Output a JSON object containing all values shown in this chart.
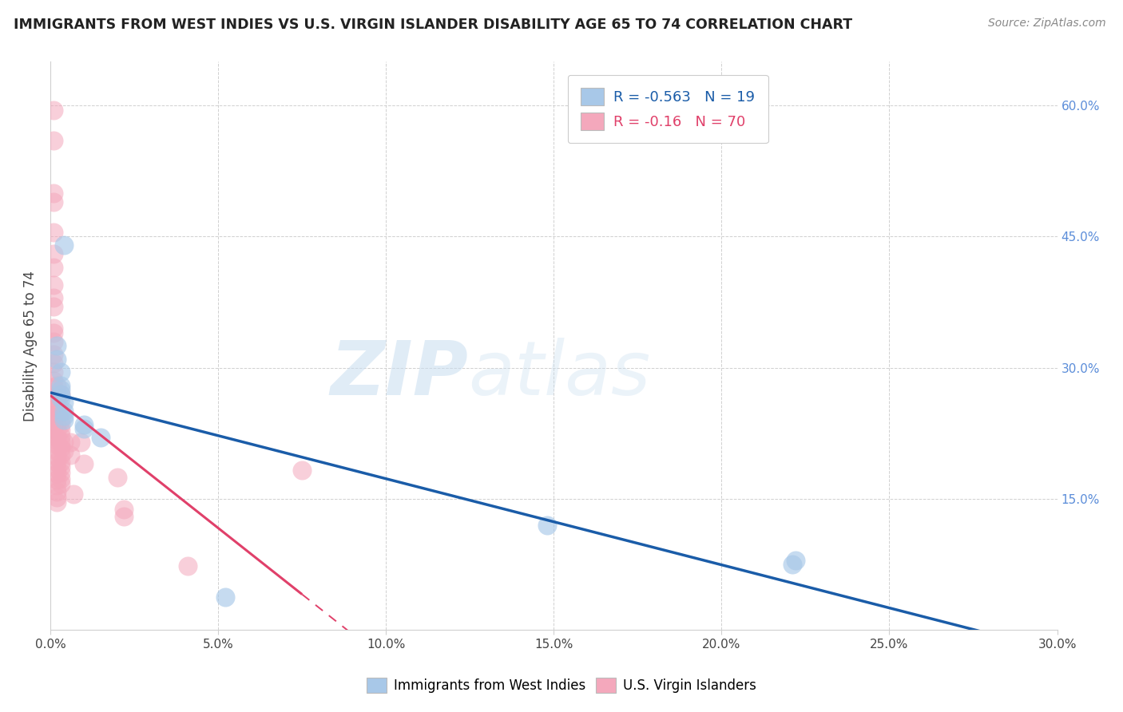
{
  "title": "IMMIGRANTS FROM WEST INDIES VS U.S. VIRGIN ISLANDER DISABILITY AGE 65 TO 74 CORRELATION CHART",
  "source": "Source: ZipAtlas.com",
  "ylabel": "Disability Age 65 to 74",
  "xmin": 0.0,
  "xmax": 0.3,
  "ymin": 0.0,
  "ymax": 0.65,
  "xticks": [
    0.0,
    0.05,
    0.1,
    0.15,
    0.2,
    0.25,
    0.3
  ],
  "yticks": [
    0.0,
    0.15,
    0.3,
    0.45,
    0.6
  ],
  "R_blue": -0.563,
  "N_blue": 19,
  "R_pink": -0.16,
  "N_pink": 70,
  "legend_label_blue": "Immigrants from West Indies",
  "legend_label_pink": "U.S. Virgin Islanders",
  "color_blue": "#a8c8e8",
  "color_pink": "#f4a8bc",
  "line_color_blue": "#1a5ca8",
  "line_color_pink": "#e0406a",
  "watermark_zip": "ZIP",
  "watermark_atlas": "atlas",
  "blue_points": [
    [
      0.004,
      0.44
    ],
    [
      0.002,
      0.325
    ],
    [
      0.002,
      0.31
    ],
    [
      0.003,
      0.295
    ],
    [
      0.003,
      0.28
    ],
    [
      0.003,
      0.275
    ],
    [
      0.003,
      0.27
    ],
    [
      0.003,
      0.265
    ],
    [
      0.004,
      0.26
    ],
    [
      0.004,
      0.25
    ],
    [
      0.004,
      0.245
    ],
    [
      0.004,
      0.24
    ],
    [
      0.01,
      0.235
    ],
    [
      0.01,
      0.23
    ],
    [
      0.015,
      0.22
    ],
    [
      0.148,
      0.12
    ],
    [
      0.221,
      0.075
    ],
    [
      0.222,
      0.08
    ],
    [
      0.052,
      0.038
    ]
  ],
  "pink_points": [
    [
      0.001,
      0.595
    ],
    [
      0.001,
      0.56
    ],
    [
      0.001,
      0.5
    ],
    [
      0.001,
      0.49
    ],
    [
      0.001,
      0.455
    ],
    [
      0.001,
      0.43
    ],
    [
      0.001,
      0.415
    ],
    [
      0.001,
      0.395
    ],
    [
      0.001,
      0.38
    ],
    [
      0.001,
      0.37
    ],
    [
      0.001,
      0.345
    ],
    [
      0.001,
      0.34
    ],
    [
      0.001,
      0.33
    ],
    [
      0.001,
      0.315
    ],
    [
      0.001,
      0.305
    ],
    [
      0.001,
      0.295
    ],
    [
      0.001,
      0.285
    ],
    [
      0.001,
      0.278
    ],
    [
      0.001,
      0.265
    ],
    [
      0.001,
      0.258
    ],
    [
      0.001,
      0.252
    ],
    [
      0.001,
      0.245
    ],
    [
      0.001,
      0.238
    ],
    [
      0.001,
      0.232
    ],
    [
      0.001,
      0.225
    ],
    [
      0.001,
      0.218
    ],
    [
      0.002,
      0.28
    ],
    [
      0.002,
      0.268
    ],
    [
      0.002,
      0.258
    ],
    [
      0.002,
      0.248
    ],
    [
      0.002,
      0.238
    ],
    [
      0.002,
      0.228
    ],
    [
      0.002,
      0.22
    ],
    [
      0.002,
      0.212
    ],
    [
      0.002,
      0.205
    ],
    [
      0.002,
      0.198
    ],
    [
      0.002,
      0.192
    ],
    [
      0.002,
      0.185
    ],
    [
      0.002,
      0.179
    ],
    [
      0.002,
      0.172
    ],
    [
      0.002,
      0.165
    ],
    [
      0.002,
      0.158
    ],
    [
      0.002,
      0.152
    ],
    [
      0.002,
      0.146
    ],
    [
      0.003,
      0.27
    ],
    [
      0.003,
      0.25
    ],
    [
      0.003,
      0.24
    ],
    [
      0.003,
      0.235
    ],
    [
      0.003,
      0.228
    ],
    [
      0.003,
      0.222
    ],
    [
      0.003,
      0.215
    ],
    [
      0.003,
      0.208
    ],
    [
      0.003,
      0.2
    ],
    [
      0.003,
      0.192
    ],
    [
      0.003,
      0.186
    ],
    [
      0.003,
      0.18
    ],
    [
      0.003,
      0.173
    ],
    [
      0.003,
      0.167
    ],
    [
      0.004,
      0.215
    ],
    [
      0.004,
      0.205
    ],
    [
      0.006,
      0.215
    ],
    [
      0.006,
      0.2
    ],
    [
      0.007,
      0.155
    ],
    [
      0.009,
      0.215
    ],
    [
      0.01,
      0.19
    ],
    [
      0.02,
      0.175
    ],
    [
      0.022,
      0.138
    ],
    [
      0.022,
      0.13
    ],
    [
      0.041,
      0.073
    ],
    [
      0.075,
      0.183
    ]
  ]
}
